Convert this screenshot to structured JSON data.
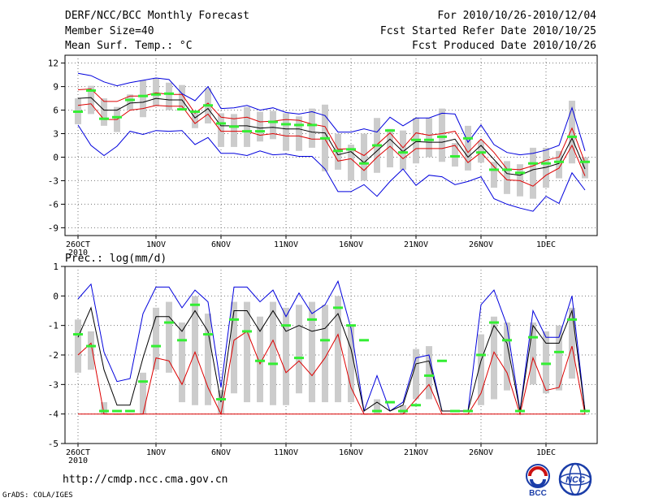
{
  "header": {
    "title": "DERF/NCC/BCC Monthly Forecast",
    "member_size": "Member Size=40",
    "variable": "Mean Surf. Temp.: °C",
    "period": "For 2010/10/26-2010/12/04",
    "start_date": "Fcst Started Refer Date 2010/10/25",
    "produced_date": "Fcst Produced Date 2010/10/26"
  },
  "footer": {
    "url": "http://cmdp.ncc.cma.gov.cn",
    "credit": "GrADS: COLA/IGES",
    "logo_bcc": "BCC",
    "logo_ncc": "NCC"
  },
  "colors": {
    "max": "#0000dd",
    "min": "#0000dd",
    "upper": "#dd0000",
    "lower": "#dd0000",
    "mean": "#000000",
    "box": "#cccccc",
    "obs": "#33ee33"
  },
  "chart_data": [
    {
      "type": "line",
      "title": "Mean Surf. Temp.: °C",
      "x_tick_labels": [
        "26OCT",
        "1NOV",
        "6NOV",
        "11NOV",
        "16NOV",
        "21NOV",
        "26NOV",
        "1DEC"
      ],
      "x_tick_days": [
        1,
        7,
        12,
        17,
        22,
        27,
        32,
        37
      ],
      "x_year_label": "2010",
      "ylim": [
        -10,
        13
      ],
      "y_ticks": [
        -9,
        -6,
        -3,
        0,
        3,
        6,
        9,
        12
      ],
      "grid": true,
      "days": [
        1,
        2,
        3,
        4,
        5,
        6,
        7,
        8,
        9,
        10,
        11,
        12,
        13,
        14,
        15,
        16,
        17,
        18,
        19,
        20,
        21,
        22,
        23,
        24,
        25,
        26,
        27,
        28,
        29,
        30,
        31,
        32,
        33,
        34,
        35,
        36,
        37,
        38,
        39,
        40
      ],
      "series": [
        {
          "name": "max",
          "values": [
            10.7,
            10.4,
            9.6,
            9.1,
            9.5,
            9.8,
            10.1,
            9.9,
            8.1,
            7.2,
            9.0,
            6.2,
            6.3,
            6.6,
            6.0,
            6.3,
            5.7,
            5.5,
            5.8,
            5.3,
            3.2,
            3.2,
            3.6,
            3.2,
            5.1,
            4.0,
            5.0,
            5.0,
            5.6,
            5.5,
            1.9,
            4.1,
            1.6,
            0.6,
            0.3,
            0.5,
            0.9,
            1.5,
            6.3,
            0.8
          ]
        },
        {
          "name": "upper",
          "values": [
            8.6,
            8.7,
            7.1,
            7.1,
            7.8,
            7.8,
            8.2,
            8.0,
            8.0,
            5.6,
            6.9,
            5.1,
            4.9,
            5.1,
            4.5,
            4.6,
            4.8,
            4.7,
            4.2,
            3.9,
            1.0,
            1.1,
            0.2,
            1.6,
            3.1,
            1.2,
            3.1,
            2.8,
            3.0,
            3.3,
            0.6,
            2.3,
            0.6,
            -1.5,
            -1.6,
            -1.1,
            -0.4,
            0.0,
            3.7,
            -0.7
          ]
        },
        {
          "name": "mean",
          "values": [
            7.5,
            7.6,
            6.0,
            6.0,
            6.9,
            7.0,
            7.5,
            7.3,
            7.3,
            5.0,
            6.2,
            4.0,
            4.0,
            4.0,
            3.7,
            3.8,
            3.6,
            3.6,
            3.2,
            3.1,
            0.3,
            0.7,
            -0.7,
            0.8,
            2.3,
            0.7,
            2.0,
            1.9,
            1.9,
            2.3,
            0.0,
            1.5,
            -0.3,
            -2.1,
            -2.3,
            -1.6,
            -1.3,
            -0.8,
            2.4,
            -1.5
          ]
        },
        {
          "name": "lower",
          "values": [
            6.6,
            6.8,
            4.8,
            4.8,
            6.0,
            6.2,
            6.6,
            6.5,
            6.5,
            4.3,
            5.5,
            3.3,
            3.3,
            3.3,
            2.8,
            3.0,
            2.7,
            2.7,
            2.3,
            2.3,
            -0.5,
            -0.2,
            -1.7,
            0.0,
            1.4,
            -0.2,
            1.1,
            1.1,
            1.1,
            1.5,
            -0.7,
            0.6,
            -1.2,
            -2.9,
            -3.0,
            -3.7,
            -2.3,
            -1.4,
            1.5,
            -2.4
          ]
        },
        {
          "name": "min",
          "values": [
            4.1,
            1.5,
            0.2,
            1.4,
            3.3,
            2.9,
            3.4,
            3.3,
            3.4,
            1.6,
            2.5,
            0.5,
            0.5,
            0.2,
            0.8,
            0.3,
            0.4,
            0.1,
            0.1,
            -1.5,
            -4.4,
            -4.4,
            -3.5,
            -5.0,
            -3.1,
            -1.5,
            -3.6,
            -2.3,
            -2.5,
            -3.5,
            -3.1,
            -2.5,
            -5.3,
            -6.0,
            -6.5,
            -6.9,
            -5.0,
            -5.9,
            -2.0,
            -4.2
          ]
        },
        {
          "name": "box_top",
          "values": [
            7.5,
            9.1,
            7.5,
            6.4,
            8.0,
            9.8,
            10.0,
            9.5,
            9.2,
            5.8,
            8.8,
            5.6,
            5.5,
            6.4,
            5.8,
            5.9,
            5.6,
            5.2,
            6.2,
            6.7,
            3.0,
            1.6,
            3.0,
            5.0,
            3.6,
            3.4,
            5.0,
            5.0,
            6.2,
            1.8,
            4.0,
            2.1,
            -0.6,
            -0.5,
            -0.9,
            1.2,
            1.2,
            0.8,
            7.2,
            0.0
          ]
        },
        {
          "name": "box_bottom",
          "values": [
            4.2,
            5.5,
            4.0,
            3.2,
            6.0,
            5.1,
            6.5,
            6.0,
            6.2,
            3.7,
            4.3,
            1.3,
            1.3,
            1.3,
            2.0,
            2.3,
            0.8,
            0.8,
            1.2,
            -1.8,
            -1.6,
            -3.0,
            -3.0,
            -2.0,
            -1.3,
            -1.6,
            -0.8,
            0.0,
            -0.6,
            -1.2,
            -1.7,
            -0.7,
            -3.9,
            -4.7,
            -5.0,
            -5.3,
            -3.9,
            -2.7,
            -0.8,
            -2.7
          ]
        },
        {
          "name": "observed",
          "values": [
            5.8,
            8.5,
            4.9,
            5.1,
            7.3,
            7.8,
            8.0,
            8.1,
            6.1,
            5.8,
            6.6,
            4.3,
            3.9,
            3.3,
            3.3,
            4.5,
            4.2,
            4.1,
            4.1,
            2.4,
            0.8,
            1.0,
            -0.8,
            1.5,
            3.4,
            0.6,
            2.2,
            2.2,
            2.6,
            0.1,
            2.4,
            0.6,
            -1.6,
            -1.6,
            -2.0,
            -0.8,
            -0.8,
            -0.6,
            2.6,
            -0.6
          ]
        }
      ]
    },
    {
      "type": "line",
      "title": "Prec.: log(mm/d)",
      "x_tick_labels": [
        "26OCT",
        "1NOV",
        "6NOV",
        "11NOV",
        "16NOV",
        "21NOV",
        "26NOV",
        "1DEC"
      ],
      "x_tick_days": [
        1,
        7,
        12,
        17,
        22,
        27,
        32,
        37
      ],
      "x_year_label": "2010",
      "ylim": [
        -5,
        1
      ],
      "y_ticks": [
        -5,
        -4,
        -3,
        -2,
        -1,
        0,
        1
      ],
      "grid": true,
      "days": [
        1,
        2,
        3,
        4,
        5,
        6,
        7,
        8,
        9,
        10,
        11,
        12,
        13,
        14,
        15,
        16,
        17,
        18,
        19,
        20,
        21,
        22,
        23,
        24,
        25,
        26,
        27,
        28,
        29,
        30,
        31,
        32,
        33,
        34,
        35,
        36,
        37,
        38,
        39,
        40
      ],
      "series": [
        {
          "name": "max",
          "values": [
            -0.1,
            0.4,
            -1.9,
            -2.9,
            -2.8,
            -0.6,
            0.3,
            0.3,
            -0.4,
            0.2,
            -0.2,
            -3.1,
            0.3,
            0.3,
            -0.2,
            0.2,
            -0.7,
            0.1,
            -0.6,
            -0.3,
            0.5,
            -1.1,
            -3.9,
            -2.7,
            -3.9,
            -3.6,
            -2.1,
            -2.0,
            -3.9,
            -3.9,
            -3.9,
            -0.3,
            0.2,
            -1.0,
            -3.9,
            -0.5,
            -1.4,
            -1.4,
            0.0,
            -3.9
          ]
        },
        {
          "name": "mean",
          "values": [
            -1.4,
            -0.4,
            -2.5,
            -3.7,
            -3.7,
            -2.1,
            -0.7,
            -0.7,
            -1.2,
            -0.5,
            -1.2,
            -3.6,
            -0.5,
            -0.5,
            -1.2,
            -0.5,
            -1.2,
            -1.0,
            -1.2,
            -1.1,
            -0.6,
            -1.8,
            -3.9,
            -3.6,
            -3.9,
            -3.7,
            -2.3,
            -2.2,
            -3.9,
            -3.9,
            -3.9,
            -2.2,
            -1.0,
            -1.6,
            -3.9,
            -1.0,
            -1.6,
            -1.6,
            -0.5,
            -3.9
          ]
        },
        {
          "name": "lower",
          "values": [
            -2.0,
            -1.6,
            -4.0,
            -4.0,
            -4.0,
            -4.0,
            -2.1,
            -2.2,
            -3.0,
            -1.9,
            -3.1,
            -4.0,
            -1.5,
            -1.2,
            -2.3,
            -1.5,
            -2.6,
            -2.2,
            -2.7,
            -2.1,
            -1.3,
            -3.1,
            -4.0,
            -4.0,
            -4.0,
            -4.0,
            -3.5,
            -3.0,
            -4.0,
            -4.0,
            -4.0,
            -3.3,
            -1.9,
            -2.6,
            -4.0,
            -2.1,
            -3.2,
            -3.1,
            -1.7,
            -4.0
          ]
        },
        {
          "name": "floor",
          "values": [
            -4.0,
            -4.0,
            -4.0,
            -4.0,
            -4.0,
            -4.0,
            -4.0,
            -4.0,
            -4.0,
            -4.0,
            -4.0,
            -4.0,
            -4.0,
            -4.0,
            -4.0,
            -4.0,
            -4.0,
            -4.0,
            -4.0,
            -4.0,
            -4.0,
            -4.0,
            -4.0,
            -4.0,
            -4.0,
            -4.0,
            -4.0,
            -4.0,
            -4.0,
            -4.0,
            -4.0,
            -4.0,
            -4.0,
            -4.0,
            -4.0,
            -4.0,
            -4.0,
            -4.0,
            -4.0,
            -4.0
          ]
        },
        {
          "name": "box_top",
          "values": [
            -0.8,
            -1.2,
            -3.6,
            -4.0,
            -4.0,
            -2.6,
            -0.4,
            -0.2,
            -0.9,
            0.0,
            -0.6,
            -3.2,
            -0.2,
            -0.2,
            -0.7,
            -0.2,
            -0.4,
            -0.3,
            -0.2,
            -0.3,
            0.0,
            -1.0,
            -4.0,
            -3.5,
            -4.0,
            -3.7,
            -1.8,
            -1.7,
            -4.0,
            -4.0,
            -4.0,
            -1.3,
            -0.7,
            -0.9,
            -4.0,
            -0.9,
            -1.2,
            -1.0,
            -0.4,
            -4.0
          ]
        },
        {
          "name": "box_bottom",
          "values": [
            -2.6,
            -2.5,
            -4.0,
            -4.0,
            -4.0,
            -4.0,
            -2.5,
            -2.6,
            -3.6,
            -3.7,
            -3.7,
            -4.0,
            -3.3,
            -3.6,
            -3.6,
            -3.7,
            -3.7,
            -3.3,
            -3.6,
            -3.6,
            -3.6,
            -3.6,
            -4.0,
            -4.0,
            -4.0,
            -4.0,
            -3.5,
            -3.5,
            -4.0,
            -4.0,
            -4.0,
            -3.7,
            -3.5,
            -3.2,
            -4.0,
            -3.0,
            -3.3,
            -3.2,
            -2.8,
            -4.0
          ]
        },
        {
          "name": "observed",
          "values": [
            -1.3,
            -1.7,
            -3.9,
            -3.9,
            -3.9,
            -2.9,
            -1.7,
            -0.9,
            -1.5,
            -0.3,
            -1.3,
            -3.5,
            -0.8,
            -1.2,
            -2.2,
            -2.3,
            -1.0,
            -2.1,
            -0.8,
            -1.5,
            -0.4,
            -1.0,
            -1.5,
            -3.9,
            -3.6,
            -3.9,
            -3.7,
            -2.7,
            -2.2,
            -3.9,
            -3.9,
            -2.0,
            -0.9,
            -1.5,
            -3.9,
            -1.4,
            -2.3,
            -1.9,
            -0.8,
            -3.9
          ]
        }
      ]
    }
  ]
}
